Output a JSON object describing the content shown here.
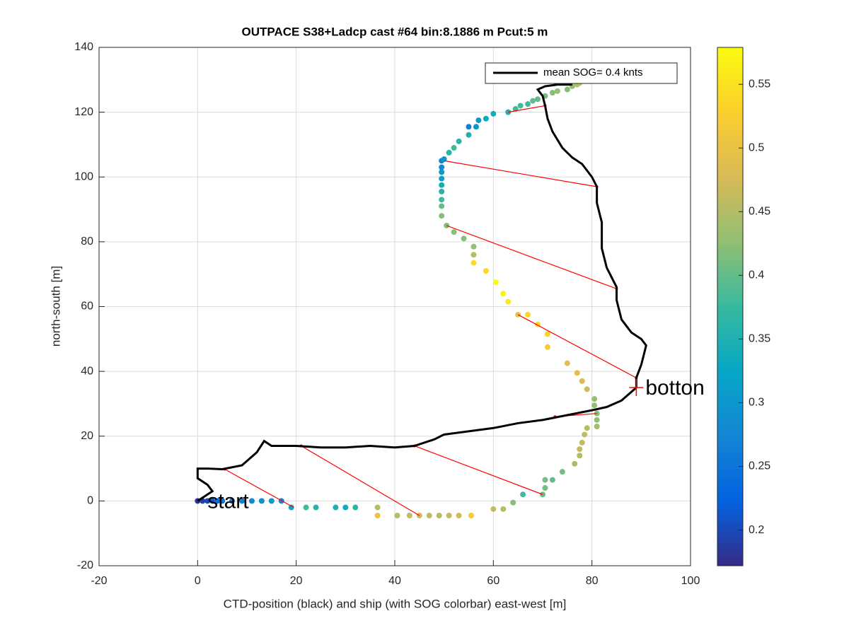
{
  "chart_data": {
    "type": "scatter",
    "title": "OUTPACE S38+Ladcp cast #64 bin:8.1886 m  Pcut:5 m",
    "xlabel": "CTD-position (black) and ship (with SOG colorbar) east-west [m]",
    "ylabel": "north-south [m]",
    "xlim": [
      -20,
      100
    ],
    "xticks": [
      -20,
      0,
      20,
      40,
      60,
      80,
      100
    ],
    "ylim": [
      -20,
      140
    ],
    "yticks": [
      -20,
      0,
      20,
      40,
      60,
      80,
      100,
      120,
      140
    ],
    "grid": true,
    "clim": [
      0.172,
      0.579
    ],
    "cticks": [
      0.2,
      0.25,
      0.3,
      0.35,
      0.4,
      0.45,
      0.5,
      0.55
    ],
    "colormap": [
      "#352a87",
      "#0363e1",
      "#1485d4",
      "#06a7c6",
      "#38b99e",
      "#92bf73",
      "#d9ba56",
      "#fcce2e",
      "#f9fb0e"
    ],
    "x": [
      0,
      1,
      2,
      3,
      4,
      5,
      7,
      9,
      11,
      13,
      15,
      17,
      19,
      22,
      24,
      28,
      30,
      32,
      36.5,
      36.5,
      40.5,
      43,
      45,
      47,
      49,
      51,
      53,
      55.5,
      60,
      62,
      64,
      66,
      70,
      70.5,
      70.5,
      72,
      74,
      76.5,
      77.5,
      77.5,
      78,
      78.5,
      79,
      81,
      81,
      81,
      80.5,
      80.5,
      79,
      78,
      77,
      75,
      71,
      71,
      69,
      67,
      65,
      63,
      62,
      60.5,
      58.5,
      56,
      56,
      56,
      54,
      52,
      50.5,
      49.5,
      49.5,
      49.5,
      49.5,
      49.5,
      49.5,
      49.5,
      49.5,
      49.5,
      50,
      51,
      52,
      53,
      55,
      55,
      56.5,
      57,
      58.5,
      60,
      63,
      64.5,
      65.5,
      67,
      68,
      69,
      70.5,
      72,
      73,
      75,
      76,
      77,
      77.5
    ],
    "y": [
      0,
      0,
      0,
      0,
      0,
      0,
      0,
      0,
      0,
      0,
      0,
      0,
      -2,
      -2,
      -2,
      -2,
      -2,
      -2,
      -2,
      -4.5,
      -4.5,
      -4.5,
      -4.5,
      -4.5,
      -4.5,
      -4.5,
      -4.5,
      -4.5,
      -2.5,
      -2.5,
      -0.5,
      2,
      2,
      4,
      6.5,
      6.5,
      9,
      11.5,
      14,
      16,
      18,
      20.5,
      22.5,
      23,
      25,
      27,
      29.5,
      31.5,
      34.5,
      37,
      39.5,
      42.5,
      47.5,
      51.5,
      54.5,
      57.5,
      57.5,
      61.5,
      64,
      67.5,
      71,
      73.5,
      76,
      78.5,
      81,
      83,
      85,
      88,
      91,
      93,
      95.5,
      97.5,
      99.5,
      101.5,
      103,
      105,
      105.5,
      107.5,
      109,
      111,
      113,
      115.5,
      115.5,
      117.5,
      118,
      119.5,
      120,
      121,
      122,
      122.5,
      123.5,
      124,
      125,
      126,
      126.5,
      127,
      128,
      128.5,
      129
    ],
    "c": [
      0.18,
      0.19,
      0.2,
      0.22,
      0.24,
      0.25,
      0.26,
      0.27,
      0.28,
      0.29,
      0.3,
      0.28,
      0.33,
      0.38,
      0.36,
      0.35,
      0.34,
      0.36,
      0.45,
      0.5,
      0.45,
      0.46,
      0.47,
      0.46,
      0.45,
      0.46,
      0.47,
      0.52,
      0.46,
      0.45,
      0.42,
      0.38,
      0.4,
      0.41,
      0.41,
      0.4,
      0.41,
      0.44,
      0.45,
      0.46,
      0.46,
      0.46,
      0.45,
      0.44,
      0.43,
      0.42,
      0.43,
      0.43,
      0.47,
      0.48,
      0.49,
      0.49,
      0.52,
      0.53,
      0.54,
      0.54,
      0.5,
      0.56,
      0.57,
      0.58,
      0.54,
      0.54,
      0.45,
      0.43,
      0.42,
      0.42,
      0.42,
      0.42,
      0.4,
      0.38,
      0.36,
      0.34,
      0.32,
      0.3,
      0.28,
      0.27,
      0.3,
      0.36,
      0.38,
      0.36,
      0.35,
      0.27,
      0.3,
      0.3,
      0.33,
      0.34,
      0.35,
      0.38,
      0.38,
      0.38,
      0.4,
      0.4,
      0.41,
      0.42,
      0.43,
      0.42,
      0.43,
      0.45,
      0.46
    ],
    "ctd_line": {
      "name": "mean SOG=  0.4 knts",
      "color": "#000000",
      "x": [
        0,
        3,
        2,
        0,
        0,
        2,
        5,
        9,
        12,
        13.5,
        15,
        20,
        25,
        30,
        35,
        40,
        44,
        48,
        50,
        55,
        60,
        65,
        70,
        75,
        80,
        83,
        86,
        89,
        89,
        90,
        91,
        90,
        88,
        86,
        85,
        85,
        83,
        82,
        82,
        81,
        81,
        80,
        78,
        76,
        74,
        72,
        71,
        70.5,
        70,
        69,
        70.5,
        73,
        76
      ],
      "y": [
        0,
        3,
        5,
        7,
        10,
        10,
        9.8,
        11,
        15,
        18.5,
        17,
        17,
        16.5,
        16.5,
        17,
        16.5,
        17,
        19,
        20.5,
        21.5,
        22.5,
        24,
        25,
        26.5,
        28,
        29,
        31,
        35,
        38,
        42,
        48,
        50,
        52,
        56,
        62,
        66,
        72,
        78,
        86,
        92,
        97,
        100,
        104,
        106,
        109,
        114,
        118,
        122,
        125,
        127,
        128,
        128.5,
        128.5
      ]
    },
    "red_lines": {
      "color": "#ff0000",
      "x1": [
        19.5,
        45,
        70,
        81,
        65,
        50.5,
        50,
        63
      ],
      "y1": [
        -2,
        -4.5,
        2,
        27,
        57.5,
        85,
        105,
        120
      ],
      "x2": [
        5.5,
        21,
        44,
        72.5,
        89,
        85,
        81,
        70.5
      ],
      "y2": [
        9.8,
        17,
        17,
        26,
        38,
        65.5,
        97,
        122
      ]
    },
    "annotations": [
      {
        "text": "start",
        "x": 2,
        "y": 0
      },
      {
        "text": "botton",
        "x": 89,
        "y": 35
      }
    ],
    "legend": "upper right"
  }
}
